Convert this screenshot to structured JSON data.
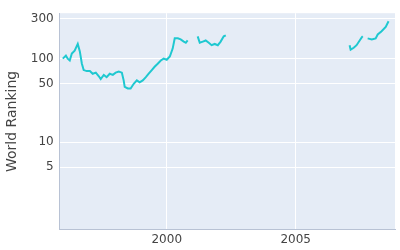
{
  "chart_data": {
    "type": "line",
    "y_label": "World Ranking",
    "x": [
      1995.97,
      1996.09,
      1996.16,
      1996.24,
      1996.32,
      1996.43,
      1996.55,
      1996.63,
      1996.71,
      1996.78,
      1996.9,
      1997.02,
      1997.13,
      1997.25,
      1997.36,
      1997.44,
      1997.56,
      1997.67,
      1997.79,
      1997.91,
      1998.02,
      1998.14,
      1998.26,
      1998.33,
      1998.37,
      1998.49,
      1998.6,
      1998.72,
      1998.84,
      1998.95,
      1999.07,
      1999.19,
      1999.3,
      1999.42,
      1999.53,
      1999.65,
      1999.77,
      1999.88,
      2000.0,
      2000.12,
      2000.23,
      2000.31,
      2000.43,
      2000.54,
      2000.66,
      2000.74,
      2000.81,
      2001.0,
      2001.2,
      2001.28,
      2001.4,
      2001.51,
      2001.63,
      2001.74,
      2001.86,
      2001.98,
      2002.09,
      2002.21,
      2002.29,
      2004.0,
      2007.09,
      2007.13,
      2007.25,
      2007.36,
      2007.48,
      2007.56,
      2007.6,
      2007.7,
      2007.79,
      2007.95,
      2008.1,
      2008.18,
      2008.33,
      2008.49,
      2008.6
    ],
    "values": [
      100,
      109,
      100,
      95,
      115,
      125,
      150,
      122,
      87,
      73,
      71,
      71,
      66,
      68,
      62,
      57,
      64,
      60,
      66,
      64,
      68,
      70,
      68,
      55,
      46,
      44,
      44,
      50,
      55,
      52,
      55,
      60,
      66,
      73,
      80,
      87,
      95,
      100,
      97,
      106,
      132,
      175,
      175,
      170,
      160,
      155,
      165,
      null,
      185,
      155,
      160,
      165,
      155,
      145,
      150,
      145,
      160,
      185,
      190,
      null,
      145,
      128,
      135,
      145,
      165,
      180,
      185,
      null,
      175,
      170,
      175,
      195,
      213,
      240,
      280
    ],
    "color": "#1fc8d0",
    "xlim": [
      1995.85,
      2008.85
    ],
    "xticks": [
      2000,
      2005
    ],
    "ylim": [
      0.9,
      350
    ],
    "yticks": [
      5,
      10,
      50,
      100,
      300
    ],
    "log": "y",
    "grid": true
  }
}
